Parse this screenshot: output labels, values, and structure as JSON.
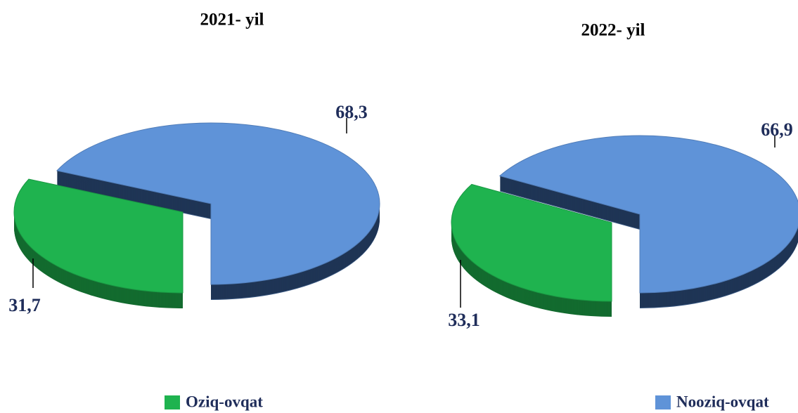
{
  "chart_data": [
    {
      "type": "pie",
      "title": "2021- yil",
      "categories": [
        "Oziq-ovqat",
        "Nooziq-ovqat"
      ],
      "values": [
        31.7,
        68.3
      ],
      "value_labels": [
        "31,7",
        "68,3"
      ],
      "colors": [
        "#1fb34f",
        "#5f93d8"
      ]
    },
    {
      "type": "pie",
      "title": "2022- yil",
      "categories": [
        "Oziq-ovqat",
        "Nooziq-ovqat"
      ],
      "values": [
        33.1,
        66.9
      ],
      "value_labels": [
        "33,1",
        "66,9"
      ],
      "colors": [
        "#1fb34f",
        "#5f93d8"
      ]
    }
  ]
}
